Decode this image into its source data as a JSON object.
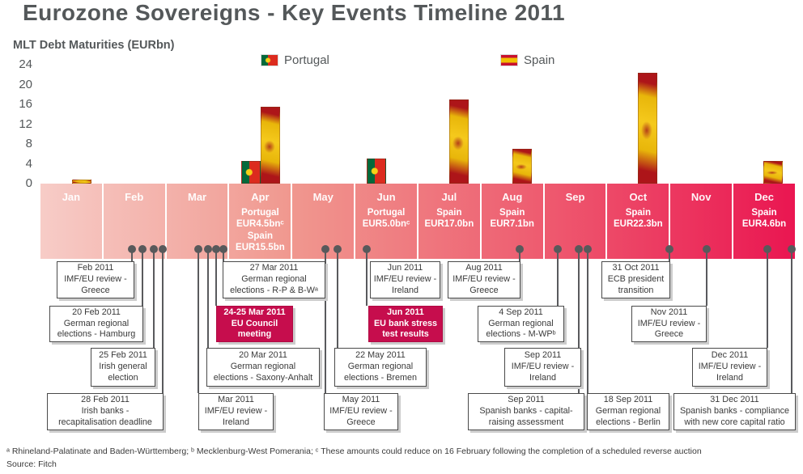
{
  "title": "Eurozone Sovereigns - Key Events Timeline 2011",
  "axis": {
    "title": "MLT Debt Maturities (EURbn)",
    "ticks": [
      24,
      20,
      16,
      12,
      8,
      4,
      0
    ]
  },
  "legend": [
    {
      "label": "Portugal"
    },
    {
      "label": "Spain"
    }
  ],
  "months": [
    {
      "label": "Jan",
      "note": ""
    },
    {
      "label": "Feb",
      "note": ""
    },
    {
      "label": "Mar",
      "note": ""
    },
    {
      "label": "Apr",
      "note": "Portugal\nEUR4.5bnᶜ\nSpain\nEUR15.5bn"
    },
    {
      "label": "May",
      "note": ""
    },
    {
      "label": "Jun",
      "note": "Portugal\nEUR5.0bnᶜ"
    },
    {
      "label": "Jul",
      "note": "Spain\nEUR17.0bn"
    },
    {
      "label": "Aug",
      "note": "Spain\nEUR7.1bn"
    },
    {
      "label": "Sep",
      "note": ""
    },
    {
      "label": "Oct",
      "note": "Spain\nEUR22.3bn"
    },
    {
      "label": "Nov",
      "note": ""
    },
    {
      "label": "Dec",
      "note": "Spain\nEUR4.6bn"
    }
  ],
  "events": [
    {
      "text": "Feb 2011\nIMF/EU review -\nGreece",
      "highlight": false
    },
    {
      "text": "27 Mar 2011\nGerman regional\nelections - R-P & B-Wᵃ",
      "highlight": false
    },
    {
      "text": "Jun 2011\nIMF/EU review -\nIreland",
      "highlight": false
    },
    {
      "text": "Aug 2011\nIMF/EU review -\nGreece",
      "highlight": false
    },
    {
      "text": "31 Oct 2011\nECB president\ntransition",
      "highlight": false
    },
    {
      "text": "20 Feb 2011\nGerman regional\nelections - Hamburg",
      "highlight": false
    },
    {
      "text": "24-25 Mar 2011\nEU Council\nmeeting",
      "highlight": true
    },
    {
      "text": "Jun 2011\nEU bank stress\ntest results",
      "highlight": true
    },
    {
      "text": "4 Sep 2011\nGerman regional\nelections - M-WPᵇ",
      "highlight": false
    },
    {
      "text": "Nov 2011\nIMF/EU review -\nGreece",
      "highlight": false
    },
    {
      "text": "25 Feb 2011\nIrish general\nelection",
      "highlight": false
    },
    {
      "text": "20 Mar 2011\nGerman regional\nelections - Saxony-Anhalt",
      "highlight": false
    },
    {
      "text": "22 May 2011\nGerman regional\nelections - Bremen",
      "highlight": false
    },
    {
      "text": "Sep 2011\nIMF/EU review -\nIreland",
      "highlight": false
    },
    {
      "text": "Dec 2011\nIMF/EU review -\nIreland",
      "highlight": false
    },
    {
      "text": "28 Feb 2011\nIrish banks -\nrecapitalisation deadline",
      "highlight": false
    },
    {
      "text": "Mar 2011\nIMF/EU review -\nIreland",
      "highlight": false
    },
    {
      "text": "May 2011\nIMF/EU review -\nGreece",
      "highlight": false
    },
    {
      "text": "Sep 2011\nSpanish banks - capital-\nraising assessment",
      "highlight": false
    },
    {
      "text": "18 Sep 2011\nGerman regional\nelections - Berlin",
      "highlight": false
    },
    {
      "text": "31 Dec 2011\nSpanish banks - compliance\nwith new core capital ratio",
      "highlight": false
    }
  ],
  "footnote": "ᵃ Rhineland-Palatinate and Baden-Württemberg; ᵇ Mecklenburg-West Pomerania; ᶜ These amounts could reduce on 16 February following the completion of a scheduled reverse auction",
  "source": "Source: Fitch",
  "colors": {
    "accent_crimson": "#c60d4d",
    "timeline_start": "#f7ccc7",
    "timeline_end": "#ea1651",
    "text_gray": "#54585a",
    "connector": "#595a5d"
  },
  "chart_data": {
    "type": "bar",
    "title": "MLT Debt Maturities (EURbn)",
    "xlabel": "",
    "ylabel": "MLT Debt Maturities (EURbn)",
    "ylim": [
      0,
      24
    ],
    "yticks": [
      0,
      4,
      8,
      12,
      16,
      20,
      24
    ],
    "grid": false,
    "legend_position": "top",
    "x": [
      "Jan",
      "Feb",
      "Mar",
      "Apr",
      "May",
      "Jun",
      "Jul",
      "Aug",
      "Sep",
      "Oct",
      "Nov",
      "Dec"
    ],
    "series": [
      {
        "name": "Portugal",
        "values": [
          0,
          0,
          0,
          4.5,
          0,
          5.0,
          0,
          0,
          0,
          0,
          0,
          0
        ]
      },
      {
        "name": "Spain",
        "values": [
          0.8,
          0,
          0,
          15.5,
          0,
          0,
          17.0,
          7.1,
          0,
          22.3,
          0,
          4.6
        ]
      }
    ]
  }
}
